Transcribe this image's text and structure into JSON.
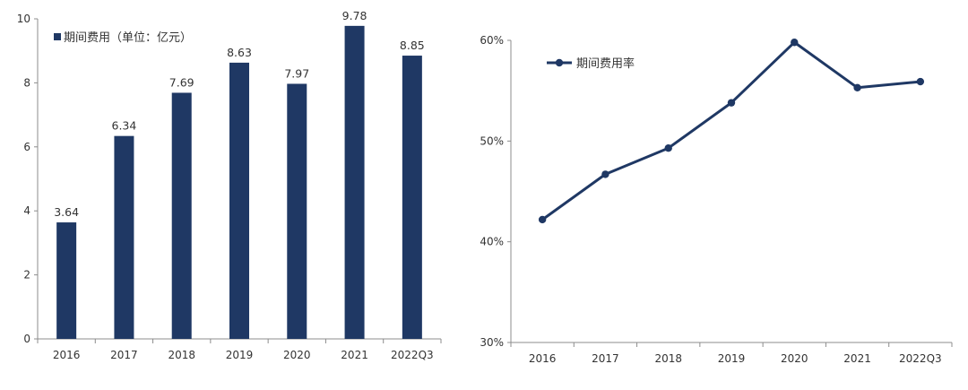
{
  "chart_data": [
    {
      "type": "bar",
      "categories": [
        "2016",
        "2017",
        "2018",
        "2019",
        "2020",
        "2021",
        "2022Q3"
      ],
      "series": [
        {
          "name": "期间费用（单位：亿元）",
          "values": [
            3.64,
            6.34,
            7.69,
            8.63,
            7.97,
            9.78,
            8.85
          ]
        }
      ],
      "data_labels": [
        "3.64",
        "6.34",
        "7.69",
        "8.63",
        "7.97",
        "9.78",
        "8.85"
      ],
      "ylim": [
        0,
        10
      ],
      "yticks": [
        0,
        2,
        4,
        6,
        8,
        10
      ],
      "ytick_labels": [
        "0",
        "2",
        "4",
        "6",
        "8",
        "10"
      ],
      "title": "",
      "xlabel": "",
      "ylabel": "",
      "grid": false,
      "legend_position": "top-left",
      "color": "#1f3864"
    },
    {
      "type": "line",
      "categories": [
        "2016",
        "2017",
        "2018",
        "2019",
        "2020",
        "2021",
        "2022Q3"
      ],
      "series": [
        {
          "name": "期间费用率",
          "values": [
            42.2,
            46.7,
            49.3,
            53.8,
            59.8,
            55.3,
            55.9
          ]
        }
      ],
      "ylim": [
        30,
        60
      ],
      "yticks": [
        30,
        40,
        50,
        60
      ],
      "ytick_labels": [
        "30%",
        "40%",
        "50%",
        "60%"
      ],
      "title": "",
      "xlabel": "",
      "ylabel": "",
      "grid": false,
      "legend_position": "top-left",
      "color": "#1f3864"
    }
  ]
}
